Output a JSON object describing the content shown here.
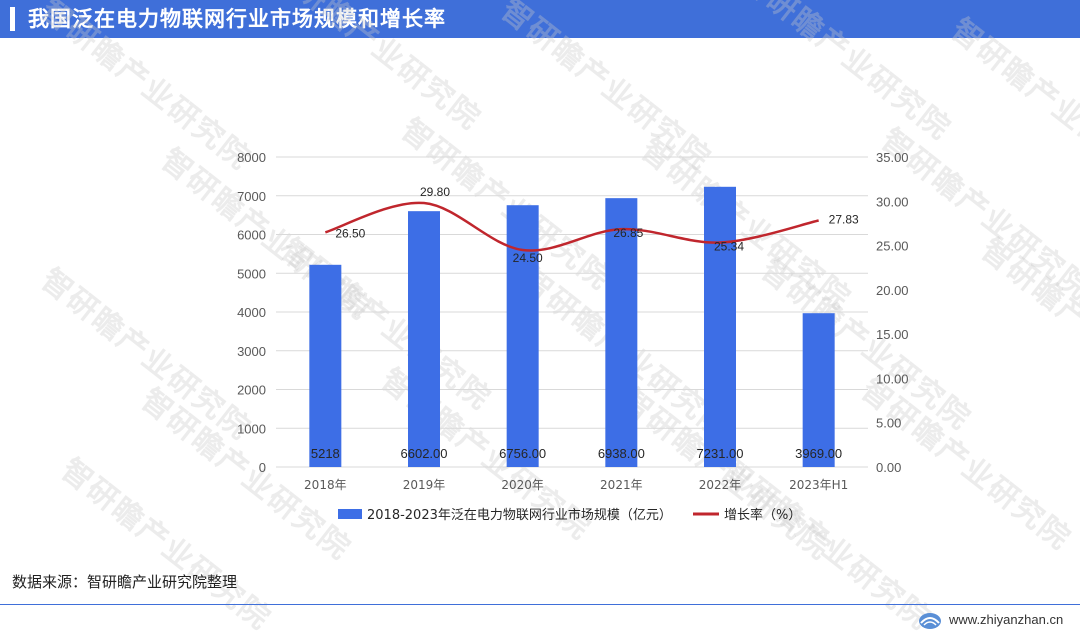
{
  "header": {
    "title": "我国泛在电力物联网行业市场规模和增长率"
  },
  "watermark": {
    "text": "智研瞻产业研究院"
  },
  "chart_data": {
    "type": "bar",
    "categories": [
      "2018年",
      "2019年",
      "2020年",
      "2021年",
      "2022年",
      "2023年H1"
    ],
    "bar_series": {
      "name": "2018-2023年泛在电力物联网行业市场规模（亿元）",
      "values": [
        5218,
        6602,
        6756,
        6938,
        7231,
        3969
      ],
      "labels": [
        "5218",
        "6602.00",
        "6756.00",
        "6938.00",
        "7231.00",
        "3969.00"
      ],
      "color": "#3d6ee6"
    },
    "line_series": {
      "name": "增长率（%）",
      "values": [
        26.5,
        29.8,
        24.5,
        26.85,
        25.34,
        27.83
      ],
      "labels": [
        "26.50",
        "29.80",
        "24.50",
        "26.85",
        "25.34",
        "27.83"
      ],
      "color": "#c0262d"
    },
    "y_left": {
      "min": 0,
      "max": 8000,
      "ticks": [
        "0",
        "1000",
        "2000",
        "3000",
        "4000",
        "5000",
        "6000",
        "7000",
        "8000"
      ]
    },
    "y_right": {
      "min": 0,
      "max": 35,
      "ticks": [
        "0.00",
        "5.00",
        "10.00",
        "15.00",
        "20.00",
        "25.00",
        "30.00",
        "35.00"
      ]
    },
    "grid": true,
    "legend_position": "bottom"
  },
  "footer": {
    "source": "数据来源：智研瞻产业研究院整理",
    "site": "www.zhiyanzhan.cn"
  }
}
